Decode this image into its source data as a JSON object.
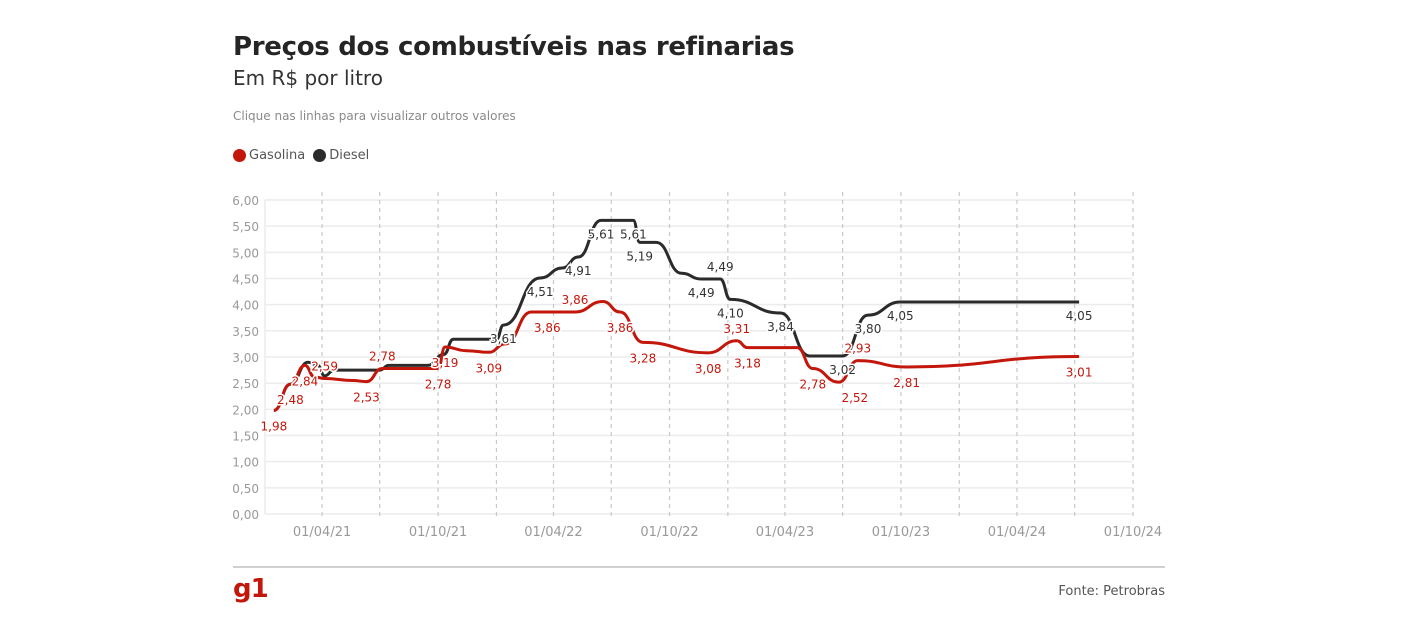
{
  "title": "Preços dos combustíveis nas refinarias",
  "subtitle": "Em R$ por litro",
  "note": "Clique nas linhas para visualizar outros valores",
  "source": "Fonte: Petrobras",
  "logo": "g1",
  "colors": {
    "gasolina": "#c4170c",
    "diesel": "#2b2b2b"
  },
  "chart_data": {
    "type": "line",
    "title": "Preços dos combustíveis nas refinarias",
    "subtitle": "Em R$ por litro",
    "ylim": [
      0,
      6
    ],
    "yticks": [
      "0,00",
      "0,50",
      "1,00",
      "1,50",
      "2,00",
      "2,50",
      "3,00",
      "3,50",
      "4,00",
      "4,50",
      "5,00",
      "5,50",
      "6,00"
    ],
    "xlim": [
      "2021-01-01",
      "2024-10-01"
    ],
    "xticks": [
      {
        "date": "2021-04-01",
        "label": "01/04/21"
      },
      {
        "date": "2021-10-01",
        "label": "01/10/21"
      },
      {
        "date": "2022-04-01",
        "label": "01/04/22"
      },
      {
        "date": "2022-10-01",
        "label": "01/10/22"
      },
      {
        "date": "2023-04-01",
        "label": "01/04/23"
      },
      {
        "date": "2023-10-01",
        "label": "01/10/23"
      },
      {
        "date": "2024-04-01",
        "label": "01/04/24"
      },
      {
        "date": "2024-10-01",
        "label": "01/10/24"
      }
    ],
    "grid": true,
    "legend_position": "top-left",
    "series": [
      {
        "name": "Gasolina",
        "color": "#c4170c",
        "points": [
          [
            "2021-01-15",
            1.98,
            "1,98"
          ],
          [
            "2021-02-10",
            2.48,
            "2,48"
          ],
          [
            "2021-03-05",
            2.84,
            "2,84"
          ],
          [
            "2021-03-20",
            2.62,
            null
          ],
          [
            "2021-04-05",
            2.59,
            "2,59"
          ],
          [
            "2021-05-20",
            2.55,
            null
          ],
          [
            "2021-06-10",
            2.53,
            "2,53"
          ],
          [
            "2021-07-05",
            2.78,
            "2,78"
          ],
          [
            "2021-10-01",
            2.78,
            "2,78"
          ],
          [
            "2021-10-12",
            3.19,
            "3,19"
          ],
          [
            "2021-11-15",
            3.12,
            null
          ],
          [
            "2021-12-20",
            3.09,
            "3,09"
          ],
          [
            "2022-01-15",
            3.25,
            null
          ],
          [
            "2022-02-25",
            3.86,
            "3,86"
          ],
          [
            "2022-05-05",
            3.86,
            "3,86"
          ],
          [
            "2022-06-18",
            4.06,
            null
          ],
          [
            "2022-07-15",
            3.86,
            "3,86"
          ],
          [
            "2022-08-20",
            3.28,
            "3,28"
          ],
          [
            "2022-12-01",
            3.08,
            "3,08"
          ],
          [
            "2023-01-15",
            3.31,
            "3,31"
          ],
          [
            "2023-02-01",
            3.18,
            "3,18"
          ],
          [
            "2023-04-20",
            3.18,
            null
          ],
          [
            "2023-05-15",
            2.78,
            "2,78"
          ],
          [
            "2023-06-25",
            2.52,
            "2,52"
          ],
          [
            "2023-07-25",
            2.93,
            "2,93"
          ],
          [
            "2023-10-10",
            2.81,
            "2,81"
          ],
          [
            "2024-07-08",
            3.01,
            "3,01"
          ]
        ]
      },
      {
        "name": "Diesel",
        "color": "#2b2b2b",
        "points": [
          [
            "2021-01-15",
            1.98,
            null
          ],
          [
            "2021-02-10",
            2.48,
            null
          ],
          [
            "2021-03-10",
            2.9,
            null
          ],
          [
            "2021-03-25",
            2.84,
            null
          ],
          [
            "2021-04-05",
            2.64,
            null
          ],
          [
            "2021-04-20",
            2.75,
            null
          ],
          [
            "2021-07-01",
            2.75,
            null
          ],
          [
            "2021-07-15",
            2.84,
            null
          ],
          [
            "2021-09-15",
            2.84,
            null
          ],
          [
            "2021-10-10",
            3.05,
            null
          ],
          [
            "2021-10-25",
            3.34,
            null
          ],
          [
            "2022-01-01",
            3.34,
            null
          ],
          [
            "2022-01-12",
            3.61,
            "3,61"
          ],
          [
            "2022-03-11",
            4.51,
            "4,51"
          ],
          [
            "2022-04-15",
            4.7,
            null
          ],
          [
            "2022-05-10",
            4.91,
            "4,91"
          ],
          [
            "2022-06-15",
            5.61,
            "5,61"
          ],
          [
            "2022-08-05",
            5.61,
            "5,61"
          ],
          [
            "2022-08-15",
            5.19,
            "5,19"
          ],
          [
            "2022-09-10",
            5.19,
            null
          ],
          [
            "2022-10-20",
            4.6,
            null
          ],
          [
            "2022-11-20",
            4.49,
            "4,49"
          ],
          [
            "2022-12-20",
            4.49,
            "4,49"
          ],
          [
            "2023-01-05",
            4.1,
            "4,10"
          ],
          [
            "2023-03-25",
            3.84,
            "3,84"
          ],
          [
            "2023-05-10",
            3.02,
            null
          ],
          [
            "2023-07-01",
            3.02,
            "3,02"
          ],
          [
            "2023-08-10",
            3.8,
            "3,80"
          ],
          [
            "2023-09-30",
            4.05,
            "4,05"
          ],
          [
            "2024-07-08",
            4.05,
            "4,05"
          ]
        ]
      }
    ]
  }
}
